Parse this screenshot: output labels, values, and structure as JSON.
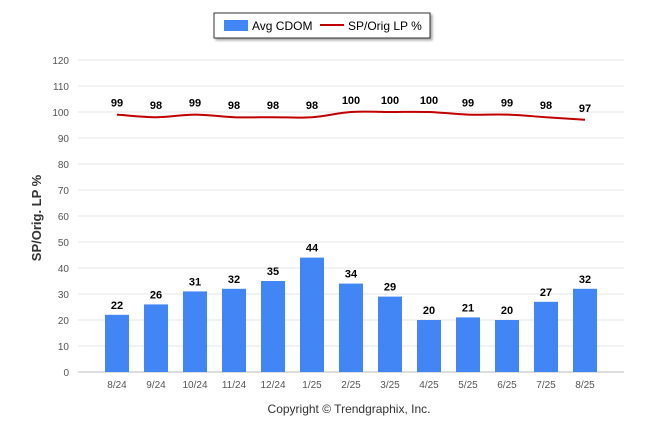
{
  "chart_data": {
    "type": "bar",
    "categories": [
      "8/24",
      "9/24",
      "10/24",
      "11/24",
      "12/24",
      "1/25",
      "2/25",
      "3/25",
      "4/25",
      "5/25",
      "6/25",
      "7/25",
      "8/25"
    ],
    "series": [
      {
        "name": "Avg CDOM",
        "type": "bar",
        "color": "#4285f4",
        "values": [
          22,
          26,
          31,
          32,
          35,
          44,
          34,
          29,
          20,
          21,
          20,
          27,
          32
        ]
      },
      {
        "name": "SP/Orig LP %",
        "type": "line",
        "color": "#c00000",
        "values": [
          99,
          98,
          99,
          98,
          98,
          98,
          100,
          100,
          100,
          99,
          99,
          98,
          97
        ]
      }
    ],
    "ylabel": "SP/Orig. LP %",
    "ylim": [
      0,
      120
    ],
    "yticks": [
      0,
      10,
      20,
      30,
      40,
      50,
      60,
      70,
      80,
      90,
      100,
      110,
      120
    ],
    "grid": true,
    "legend_position": "top-center",
    "credit": "Copyright © Trendgraphix, Inc."
  }
}
